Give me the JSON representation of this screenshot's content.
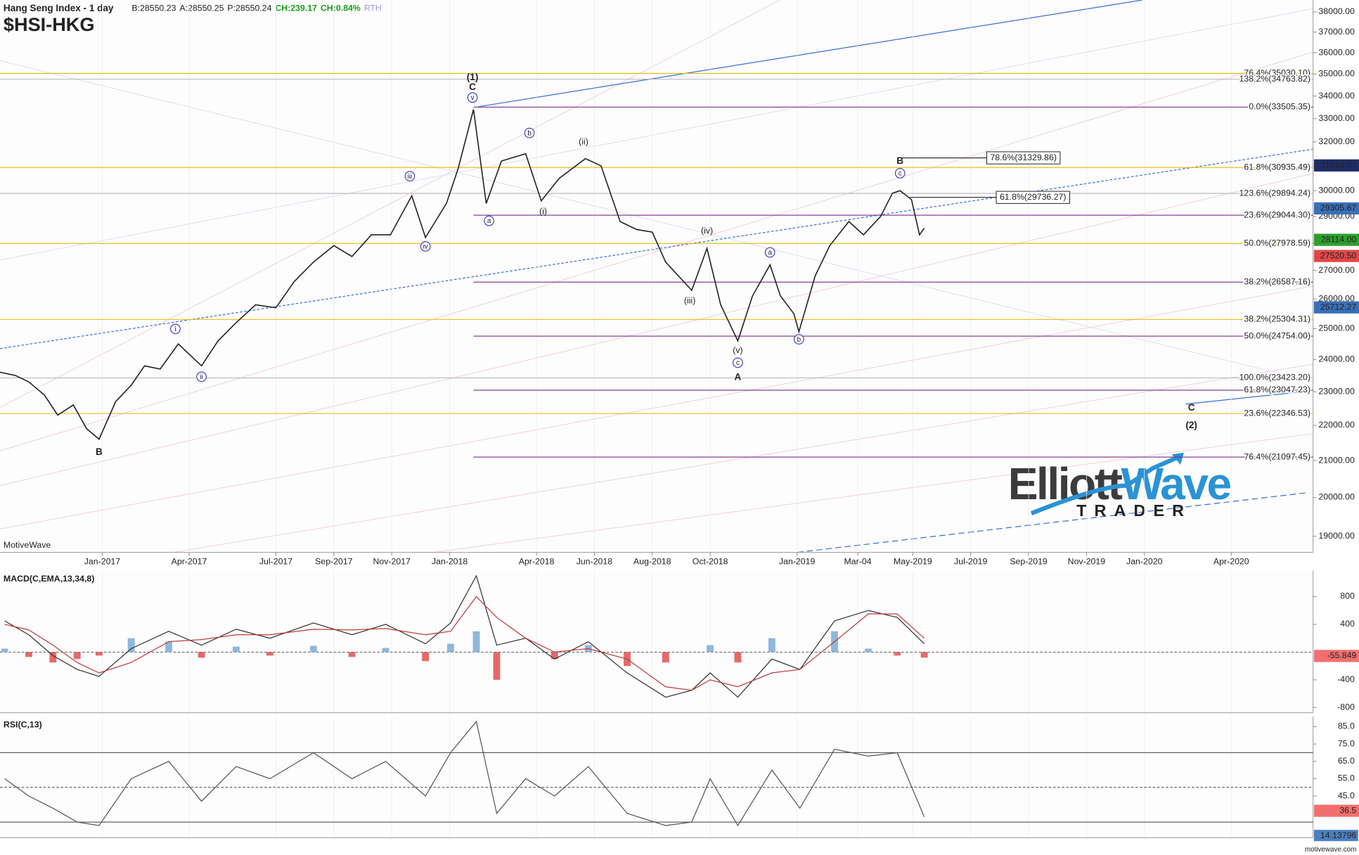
{
  "header": {
    "title": "Hang Seng Index - 1 day",
    "quote": [
      "B:28550.23",
      "A:28550.25",
      "P:28550.24",
      "CH:239.17",
      "CH:0.84%",
      "RTH"
    ],
    "symbol": "$HSI-HKG",
    "watermark": "MotiveWave",
    "logo": [
      "Elliott",
      "Wave",
      "TRADER"
    ],
    "footer": "motivewave.com"
  },
  "chart_data": [
    {
      "type": "line",
      "log_scale": true,
      "grid": true,
      "ylim": [
        18600,
        38600
      ],
      "yticks": [
        {
          "value": 19000,
          "label": "19000.00"
        },
        {
          "value": 20000,
          "label": "20000.00"
        },
        {
          "value": 21000,
          "label": "21000.00"
        },
        {
          "value": 22000,
          "label": "22000.00"
        },
        {
          "value": 23000,
          "label": "23000.00"
        },
        {
          "value": 24000,
          "label": "24000.00"
        },
        {
          "value": 25000,
          "label": "25000.00"
        },
        {
          "value": 26000,
          "label": "26000.00"
        },
        {
          "value": 27000,
          "label": "27000.00"
        },
        {
          "value": 28000,
          "label": "28000.00"
        },
        {
          "value": 29000,
          "label": "29000.00"
        },
        {
          "value": 30000,
          "label": "30000.00"
        },
        {
          "value": 31000,
          "label": "31000.00"
        },
        {
          "value": 32000,
          "label": "32000.00"
        },
        {
          "value": 33000,
          "label": "33000.00"
        },
        {
          "value": 34000,
          "label": "34000.00"
        },
        {
          "value": 35000,
          "label": "35000.00"
        },
        {
          "value": 36000,
          "label": "36000.00"
        },
        {
          "value": 37000,
          "label": "37000.00"
        },
        {
          "value": 38000,
          "label": "38000.00"
        }
      ],
      "xticks": [
        {
          "value": "2017-01",
          "label": "Jan-2017"
        },
        {
          "value": "2017-04",
          "label": "Apr-2017"
        },
        {
          "value": "2017-07",
          "label": "Jul-2017"
        },
        {
          "value": "2017-09",
          "label": "Sep-2017"
        },
        {
          "value": "2017-11",
          "label": "Nov-2017"
        },
        {
          "value": "2018-01",
          "label": "Jan-2018"
        },
        {
          "value": "2018-04",
          "label": "Apr-2018"
        },
        {
          "value": "2018-06",
          "label": "Jun-2018"
        },
        {
          "value": "2018-08",
          "label": "Aug-2018"
        },
        {
          "value": "2018-10",
          "label": "Oct-2018"
        },
        {
          "value": "2019-01",
          "label": "Jan-2019"
        },
        {
          "value": "2019-03-04",
          "label": "Mar-04"
        },
        {
          "value": "2019-05",
          "label": "May-2019"
        },
        {
          "value": "2019-07",
          "label": "Jul-2019"
        },
        {
          "value": "2019-09",
          "label": "Sep-2019"
        },
        {
          "value": "2019-11",
          "label": "Nov-2019"
        },
        {
          "value": "2020-01",
          "label": "Jan-2020"
        },
        {
          "value": "2020-04",
          "label": "Apr-2020"
        }
      ],
      "x": [
        "2016-09-15",
        "2016-10-01",
        "2016-10-15",
        "2016-11-01",
        "2016-11-15",
        "2016-12-01",
        "2016-12-15",
        "2016-12-28",
        "2017-01-15",
        "2017-02-01",
        "2017-02-15",
        "2017-03-01",
        "2017-03-20",
        "2017-04-14",
        "2017-05-01",
        "2017-05-20",
        "2017-06-10",
        "2017-07-01",
        "2017-07-20",
        "2017-08-10",
        "2017-09-01",
        "2017-09-20",
        "2017-10-10",
        "2017-10-30",
        "2017-11-22",
        "2017-12-06",
        "2017-12-28",
        "2018-01-10",
        "2018-01-26",
        "2018-02-09",
        "2018-02-25",
        "2018-03-20",
        "2018-04-06",
        "2018-04-25",
        "2018-05-22",
        "2018-06-08",
        "2018-06-28",
        "2018-07-15",
        "2018-08-01",
        "2018-08-15",
        "2018-09-12",
        "2018-09-28",
        "2018-10-12",
        "2018-10-30",
        "2018-11-15",
        "2018-12-03",
        "2018-12-14",
        "2018-12-28",
        "2019-01-03",
        "2019-01-20",
        "2019-02-05",
        "2019-02-25",
        "2019-03-10",
        "2019-03-28",
        "2019-04-10",
        "2019-04-18",
        "2019-04-30",
        "2019-05-08",
        "2019-05-13"
      ],
      "series": [
        {
          "color": "#222222",
          "values": [
            23600,
            23500,
            23300,
            22900,
            22300,
            22600,
            21900,
            21600,
            22700,
            23200,
            23800,
            23700,
            24500,
            23800,
            24600,
            25200,
            25800,
            25700,
            26600,
            27300,
            27900,
            27500,
            28300,
            28300,
            29800,
            28200,
            29500,
            30900,
            33400,
            29500,
            31200,
            31500,
            29600,
            30500,
            31300,
            31000,
            28800,
            28500,
            28400,
            27300,
            26300,
            27800,
            25800,
            24600,
            26100,
            27200,
            26100,
            25500,
            24900,
            26800,
            27900,
            28800,
            28300,
            29000,
            29900,
            30000,
            29650,
            28300,
            28550
          ]
        }
      ],
      "levels": [
        {
          "label": "0.0%(33505.35)",
          "value": 33505.35,
          "color": "#7b2c8c",
          "start": "2018-01-26"
        },
        {
          "label": "23.6%(29044.30)",
          "value": 29044.3,
          "color": "#7b2c8c",
          "start": "2018-01-26"
        },
        {
          "label": "38.2%(26587.16)",
          "value": 26587.16,
          "color": "#7b2c8c",
          "start": "2018-01-26"
        },
        {
          "label": "50.0%(24754.00)",
          "value": 24754.0,
          "color": "#7b2c8c",
          "start": "2018-01-26"
        },
        {
          "label": "61.8%(23047.23)",
          "value": 23047.23,
          "color": "#7b2c8c",
          "start": "2018-01-26"
        },
        {
          "label": "76.4%(21097.45)",
          "value": 21097.45,
          "color": "#7b2c8c",
          "start": "2018-01-26"
        },
        {
          "label": "76.4%(35030.10)",
          "value": 35030.1,
          "color": "#e8b800"
        },
        {
          "label": "61.8%(30935.49)",
          "value": 30935.49,
          "color": "#e8b800"
        },
        {
          "label": "50.0%(27978.59)",
          "value": 27978.59,
          "color": "#e8b800"
        },
        {
          "label": "38.2%(25304.31)",
          "value": 25304.31,
          "color": "#e8b800"
        },
        {
          "label": "23.6%(22346.53)",
          "value": 22346.53,
          "color": "#e8b800"
        },
        {
          "label": "138.2%(34763.82)",
          "value": 34763.82,
          "color": "#b4b4b4"
        },
        {
          "label": "123.6%(29894.24)",
          "value": 29894.24,
          "color": "#b4b4b4"
        },
        {
          "label": "100.0%(23423.20)",
          "value": 23423.2,
          "color": "#b4b4b4"
        },
        {
          "label": "78.6%(31329.86)",
          "value": 31329.86,
          "color": "#222222",
          "start": "2019-04-18",
          "boxed": true
        },
        {
          "label": "61.8%(29736.27)",
          "value": 29736.27,
          "color": "#222222",
          "start": "2019-04-28",
          "boxed": true
        }
      ],
      "price_labels": [
        {
          "value": 31019.27,
          "label": "31019.27",
          "color": "#1f2d66"
        },
        {
          "value": 29305.67,
          "label": "29305.67",
          "color": "#3a6fb5"
        },
        {
          "value": 28114.0,
          "label": "28114.00",
          "color": "#2e9e2e"
        },
        {
          "value": 27520.5,
          "label": "27520.50",
          "color": "#e04848"
        },
        {
          "value": 25712.27,
          "label": "25712.27",
          "color": "#3a6fb5"
        }
      ],
      "wave_labels": [
        {
          "label": "B",
          "x": "2016-12-28",
          "y": 21235,
          "style": "bold"
        },
        {
          "label": "i",
          "x": "2017-03-17",
          "y": 24990,
          "style": "circle"
        },
        {
          "label": "ii",
          "x": "2017-04-14",
          "y": 23460,
          "style": "circle"
        },
        {
          "label": "iii",
          "x": "2017-11-20",
          "y": 30580,
          "style": "circle"
        },
        {
          "label": "iv",
          "x": "2017-12-06",
          "y": 27870,
          "style": "circle"
        },
        {
          "label": "v",
          "x": "2018-01-25",
          "y": 33930,
          "style": "circle"
        },
        {
          "label": "C",
          "x": "2018-01-25",
          "y": 34400,
          "style": "bold"
        },
        {
          "label": "(1)",
          "x": "2018-01-25",
          "y": 34850,
          "style": "bold"
        },
        {
          "label": "a",
          "x": "2018-02-12",
          "y": 28830,
          "style": "circle"
        },
        {
          "label": "b",
          "x": "2018-03-24",
          "y": 32380,
          "style": "circle"
        },
        {
          "label": "(i)",
          "x": "2018-04-08",
          "y": 29190,
          "style": "plain"
        },
        {
          "label": "(ii)",
          "x": "2018-05-20",
          "y": 32010,
          "style": "plain"
        },
        {
          "label": "(iii)",
          "x": "2018-09-10",
          "y": 25940,
          "style": "plain"
        },
        {
          "label": "(iv)",
          "x": "2018-09-28",
          "y": 28450,
          "style": "plain"
        },
        {
          "label": "(v)",
          "x": "2018-10-30",
          "y": 24300,
          "style": "plain"
        },
        {
          "label": "c",
          "x": "2018-10-30",
          "y": 23900,
          "style": "circle"
        },
        {
          "label": "A",
          "x": "2018-10-30",
          "y": 23450,
          "style": "bold"
        },
        {
          "label": "a",
          "x": "2018-12-03",
          "y": 27650,
          "style": "circle"
        },
        {
          "label": "b",
          "x": "2019-01-03",
          "y": 24650,
          "style": "circle"
        },
        {
          "label": "c",
          "x": "2019-04-18",
          "y": 30700,
          "style": "circle"
        },
        {
          "label": "B",
          "x": "2019-04-18",
          "y": 31200,
          "style": "bold"
        },
        {
          "label": "C",
          "x": "2020-02-20",
          "y": 22520,
          "style": "bold"
        },
        {
          "label": "(2)",
          "x": "2020-02-20",
          "y": 22000,
          "style": "bold"
        }
      ]
    },
    {
      "type": "line",
      "title": "MACD(C,EMA,13,34,8)",
      "ylim": [
        -875,
        1175
      ],
      "yticks": [
        800,
        400,
        -400,
        -800
      ],
      "x": [
        "2016-09-20",
        "2016-10-15",
        "2016-11-10",
        "2016-12-05",
        "2016-12-28",
        "2017-02-01",
        "2017-03-10",
        "2017-04-14",
        "2017-05-20",
        "2017-06-25",
        "2017-08-10",
        "2017-09-20",
        "2017-10-25",
        "2017-12-06",
        "2018-01-02",
        "2018-01-29",
        "2018-02-20",
        "2018-03-20",
        "2018-04-20",
        "2018-05-25",
        "2018-07-05",
        "2018-08-15",
        "2018-09-12",
        "2018-10-01",
        "2018-10-30",
        "2018-12-05",
        "2019-01-04",
        "2019-02-10",
        "2019-03-15",
        "2019-04-15",
        "2019-05-13"
      ],
      "series": [
        {
          "style": "bar",
          "color": "#8fb6dc",
          "negative_color": "#e46a6a",
          "values": [
            50,
            -70,
            -150,
            -100,
            -50,
            200,
            150,
            -80,
            80,
            -50,
            90,
            -70,
            60,
            -130,
            120,
            300,
            -400,
            0,
            -100,
            100,
            -200,
            -150,
            0,
            100,
            -150,
            200,
            0,
            300,
            50,
            -50,
            -80
          ]
        },
        {
          "color": "#333333",
          "values": [
            450,
            250,
            -50,
            -250,
            -350,
            50,
            300,
            100,
            330,
            200,
            420,
            250,
            400,
            120,
            420,
            1100,
            100,
            200,
            -100,
            150,
            -300,
            -650,
            -550,
            -300,
            -650,
            -100,
            -250,
            450,
            600,
            500,
            120
          ]
        },
        {
          "color": "#c03a3a",
          "values": [
            400,
            320,
            100,
            -150,
            -300,
            -150,
            150,
            180,
            250,
            250,
            330,
            320,
            340,
            250,
            300,
            800,
            500,
            200,
            0,
            50,
            -100,
            -500,
            -550,
            -400,
            -500,
            -300,
            -250,
            150,
            550,
            550,
            200
          ]
        }
      ],
      "value_boxes": [
        {
          "value": -55.849,
          "color": "#f07070"
        }
      ]
    },
    {
      "type": "line",
      "title": "RSI(C,13)",
      "ylim": [
        21,
        91
      ],
      "yticks": [
        {
          "value": 85,
          "label": "85.0"
        },
        {
          "value": 75,
          "label": "75.0"
        },
        {
          "value": 65,
          "label": "65.0"
        },
        {
          "value": 55,
          "label": "55.0"
        },
        {
          "value": 45,
          "label": "45.0"
        }
      ],
      "levels": [
        {
          "value": 70
        },
        {
          "value": 50,
          "style": "dashed"
        },
        {
          "value": 30
        }
      ],
      "x": [
        "2016-09-20",
        "2016-10-15",
        "2016-11-10",
        "2016-12-05",
        "2016-12-28",
        "2017-02-01",
        "2017-03-10",
        "2017-04-14",
        "2017-05-20",
        "2017-06-25",
        "2017-08-10",
        "2017-09-20",
        "2017-10-25",
        "2017-12-06",
        "2018-01-02",
        "2018-01-29",
        "2018-02-20",
        "2018-03-20",
        "2018-04-20",
        "2018-05-25",
        "2018-07-05",
        "2018-08-15",
        "2018-09-12",
        "2018-10-01",
        "2018-10-30",
        "2018-12-05",
        "2019-01-04",
        "2019-02-10",
        "2019-03-15",
        "2019-04-15",
        "2019-05-13"
      ],
      "series": [
        {
          "color": "#555555",
          "values": [
            55,
            45,
            38,
            30,
            28,
            55,
            65,
            42,
            62,
            55,
            70,
            55,
            65,
            45,
            70,
            88,
            35,
            55,
            45,
            62,
            35,
            28,
            30,
            55,
            28,
            60,
            38,
            72,
            68,
            70,
            33
          ]
        }
      ],
      "value_boxes": [
        {
          "value": 36.5,
          "color": "#f07070"
        }
      ],
      "side_value": 14.13796
    }
  ]
}
